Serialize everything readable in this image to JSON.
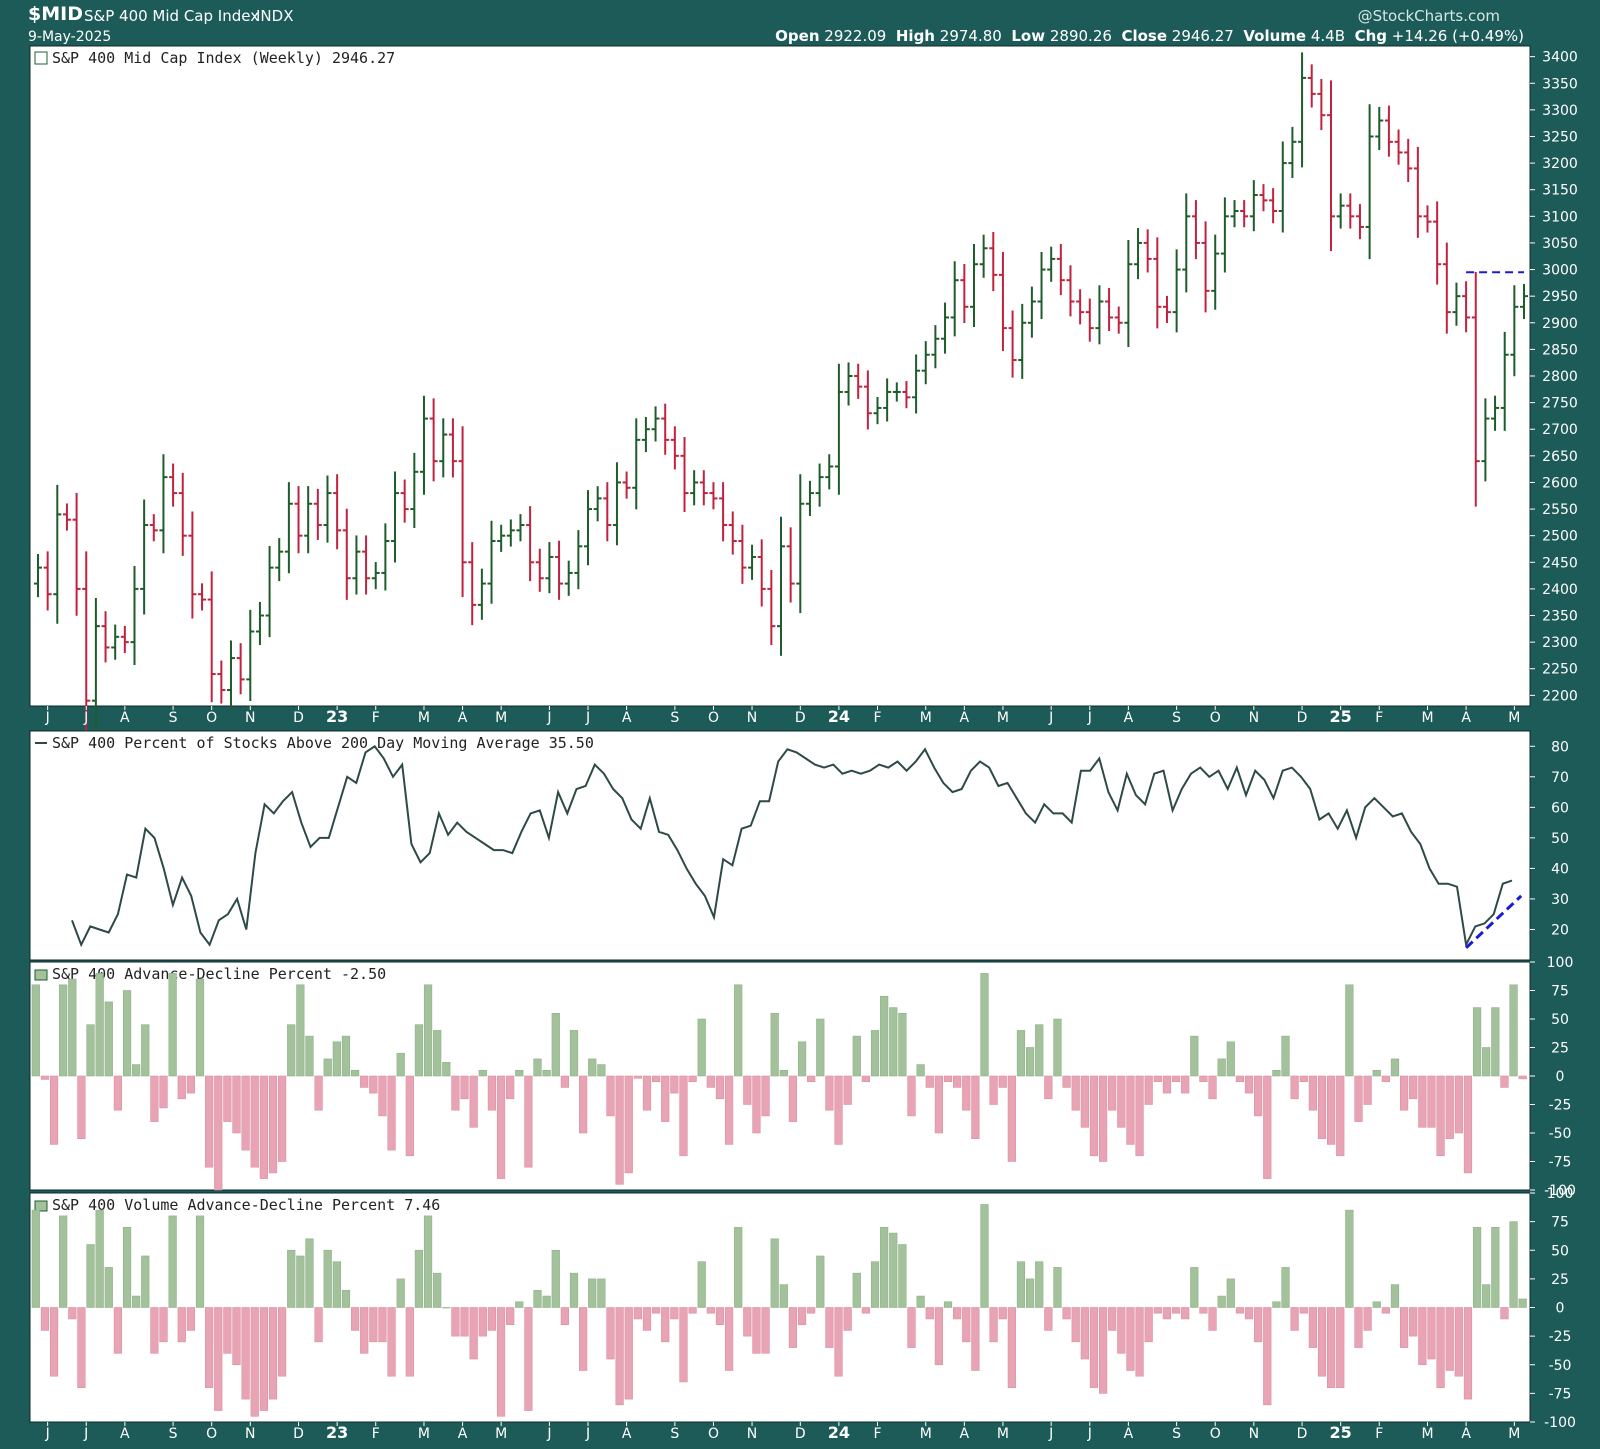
{
  "header": {
    "symbol": "$MID",
    "name": "S&P 400 Mid Cap Index",
    "exchange": "INDX",
    "date": "9-May-2025",
    "watermark": "@StockCharts.com",
    "ohlc": {
      "open_label": "Open",
      "open": "2922.09",
      "high_label": "High",
      "high": "2974.80",
      "low_label": "Low",
      "low": "2890.26",
      "close_label": "Close",
      "close": "2946.27",
      "volume_label": "Volume",
      "volume": "4.4B",
      "chg_label": "Chg",
      "chg": "+14.26 (+0.49%)"
    }
  },
  "colors": {
    "frame": "#1c5b57",
    "up": "#1e5c2b",
    "down": "#c0223f",
    "line": "#2d4a48",
    "pos_bar": "#a3c29c",
    "neg_bar": "#e8a4b4",
    "dashed": "#1b1bd6"
  },
  "x_axis": {
    "labels": [
      "J",
      "J",
      "A",
      "S",
      "O",
      "N",
      "D",
      "23",
      "F",
      "M",
      "A",
      "M",
      "J",
      "J",
      "A",
      "S",
      "O",
      "N",
      "D",
      "24",
      "F",
      "M",
      "A",
      "M",
      "J",
      "J",
      "A",
      "S",
      "O",
      "N",
      "D",
      "25",
      "F",
      "M",
      "A",
      "M"
    ],
    "label_weeks": [
      1,
      5,
      9,
      14,
      18,
      22,
      27,
      31,
      35,
      40,
      44,
      48,
      53,
      57,
      61,
      66,
      70,
      74,
      79,
      83,
      87,
      92,
      96,
      100,
      105,
      109,
      113,
      118,
      122,
      126,
      131,
      135,
      139,
      144,
      148,
      153
    ]
  },
  "chart_data": [
    {
      "type": "ohlc",
      "title": "S&P 400 Mid Cap Index (Weekly) 2946.27",
      "ylim": [
        2180,
        3420
      ],
      "yticks": [
        2200,
        2250,
        2300,
        2350,
        2400,
        2450,
        2500,
        2550,
        2600,
        2650,
        2700,
        2750,
        2800,
        2850,
        2900,
        2950,
        3000,
        3050,
        3100,
        3150,
        3200,
        3250,
        3300,
        3350,
        3400
      ],
      "closes": [
        2440,
        2390,
        2540,
        2530,
        2400,
        2190,
        2330,
        2290,
        2310,
        2300,
        2400,
        2520,
        2510,
        2610,
        2580,
        2500,
        2390,
        2380,
        2240,
        2210,
        2270,
        2230,
        2320,
        2350,
        2440,
        2470,
        2560,
        2500,
        2560,
        2520,
        2580,
        2510,
        2420,
        2470,
        2420,
        2430,
        2490,
        2580,
        2550,
        2620,
        2720,
        2640,
        2690,
        2640,
        2450,
        2370,
        2410,
        2490,
        2500,
        2510,
        2520,
        2450,
        2420,
        2460,
        2410,
        2430,
        2480,
        2550,
        2570,
        2520,
        2600,
        2590,
        2680,
        2700,
        2720,
        2680,
        2650,
        2580,
        2600,
        2580,
        2570,
        2520,
        2490,
        2440,
        2460,
        2400,
        2330,
        2480,
        2410,
        2560,
        2580,
        2610,
        2630,
        2770,
        2800,
        2780,
        2730,
        2740,
        2770,
        2770,
        2760,
        2810,
        2840,
        2870,
        2910,
        2980,
        2930,
        3010,
        3040,
        2990,
        2890,
        2830,
        2900,
        2940,
        3000,
        3020,
        2980,
        2940,
        2920,
        2890,
        2940,
        2910,
        2900,
        3010,
        3050,
        3020,
        2930,
        2920,
        3000,
        3100,
        3050,
        2960,
        3030,
        3100,
        3110,
        3100,
        3140,
        3130,
        3110,
        3200,
        3240,
        3360,
        3330,
        3290,
        3100,
        3120,
        3100,
        3080,
        3250,
        3280,
        3240,
        3220,
        3190,
        3100,
        3090,
        3010,
        2920,
        2950,
        2910,
        2640,
        2720,
        2740,
        2840,
        2930,
        2950
      ],
      "ohlc_reading": "closes estimated from the price scale, one bar per week"
    },
    {
      "type": "line",
      "title": "S&P 400 Percent of Stocks Above 200 Day Moving Average 35.50",
      "ylim": [
        10,
        85
      ],
      "yticks": [
        20,
        30,
        40,
        50,
        60,
        70,
        80
      ],
      "values": [
        23,
        15,
        21,
        20,
        19,
        25,
        38,
        37,
        53,
        50,
        40,
        28,
        37,
        31,
        19,
        15,
        23,
        25,
        30,
        20,
        45,
        61,
        58,
        62,
        65,
        55,
        47,
        50,
        50,
        60,
        70,
        68,
        78,
        80,
        76,
        70,
        74,
        48,
        42,
        45,
        58,
        51,
        55,
        52,
        50,
        48,
        46,
        46,
        45,
        52,
        58,
        59,
        50,
        65,
        58,
        66,
        67,
        74,
        71,
        66,
        63,
        56,
        53,
        63,
        52,
        51,
        46,
        40,
        35,
        31,
        24,
        43,
        41,
        53,
        54,
        62,
        62,
        75,
        79,
        78,
        76,
        74,
        73,
        74,
        71,
        72,
        71,
        72,
        74,
        73,
        75,
        72,
        75,
        79,
        73,
        68,
        65,
        66,
        72,
        75,
        73,
        67,
        68,
        63,
        58,
        55,
        61,
        58,
        58,
        55,
        72,
        72,
        76,
        65,
        59,
        71,
        64,
        61,
        71,
        72,
        59,
        66,
        71,
        73,
        70,
        72,
        66,
        73,
        64,
        72,
        69,
        63,
        72,
        73,
        70,
        66,
        56,
        58,
        53,
        59,
        50,
        60,
        63,
        60,
        57,
        58,
        52,
        48,
        40,
        35,
        35,
        34,
        15,
        21,
        22,
        25,
        35,
        36
      ],
      "trendline": {
        "from": [
          152,
          14
        ],
        "to": [
          158,
          31
        ]
      }
    },
    {
      "type": "bar",
      "title": "S&P 400 Advance-Decline Percent -2.50",
      "ylim": [
        -100,
        100
      ],
      "yticks": [
        100,
        75,
        50,
        25,
        0,
        -25,
        -50,
        -75,
        -100
      ],
      "values": [
        80,
        -3,
        -60,
        80,
        85,
        -55,
        45,
        90,
        65,
        -30,
        75,
        10,
        45,
        -40,
        -28,
        90,
        -20,
        -15,
        85,
        -80,
        -100,
        -40,
        -50,
        -65,
        -80,
        -90,
        -85,
        -75,
        45,
        80,
        35,
        -30,
        15,
        30,
        35,
        5,
        -10,
        -15,
        -35,
        -65,
        20,
        -70,
        45,
        80,
        40,
        12,
        -30,
        -20,
        -45,
        5,
        -30,
        -90,
        -20,
        5,
        -80,
        15,
        5,
        55,
        -10,
        40,
        -50,
        15,
        10,
        -35,
        -95,
        -85,
        -2,
        -30,
        -5,
        -40,
        -15,
        -70,
        -5,
        50,
        -10,
        -20,
        -60,
        80,
        -25,
        -50,
        -35,
        55,
        5,
        -40,
        30,
        -5,
        50,
        -30,
        -60,
        -25,
        35,
        -5,
        40,
        70,
        60,
        55,
        -35,
        10,
        -10,
        -50,
        -5,
        -10,
        -30,
        -55,
        90,
        -25,
        -10,
        -75,
        40,
        25,
        45,
        -20,
        50,
        -10,
        -30,
        -45,
        -70,
        -75,
        -30,
        -45,
        -60,
        -70,
        -25,
        -5,
        -15,
        -5,
        -15,
        35,
        -5,
        -20,
        15,
        30,
        -5,
        -15,
        -35,
        -90,
        5,
        35,
        -20,
        -5,
        -30,
        -55,
        -60,
        -70,
        80,
        -40,
        -25,
        5,
        -5,
        15,
        -30,
        -20,
        -45,
        -45,
        -70,
        -55,
        -50,
        -85,
        60,
        25,
        60,
        -10,
        80,
        -2.5
      ],
      "bars_reading": "heights estimated from the percent scale, one bar per week"
    },
    {
      "type": "bar",
      "title": "S&P 400 Volume Advance-Decline Percent 7.46",
      "ylim": [
        -100,
        100
      ],
      "yticks": [
        100,
        75,
        50,
        25,
        0,
        -25,
        -50,
        -75,
        -100
      ],
      "values": [
        85,
        -20,
        -60,
        80,
        -10,
        -70,
        55,
        85,
        35,
        -40,
        70,
        10,
        45,
        -40,
        -30,
        80,
        -30,
        -20,
        80,
        -70,
        -90,
        -40,
        -50,
        -80,
        -95,
        -90,
        -80,
        -60,
        50,
        45,
        60,
        -30,
        50,
        40,
        15,
        -20,
        -40,
        -30,
        -30,
        -60,
        25,
        -60,
        50,
        80,
        30,
        0,
        -25,
        -25,
        -45,
        -25,
        -20,
        -95,
        -15,
        5,
        -90,
        15,
        10,
        50,
        -15,
        30,
        -55,
        25,
        25,
        -45,
        -85,
        -80,
        -10,
        -20,
        -5,
        -30,
        -10,
        -65,
        -5,
        40,
        -5,
        -15,
        -55,
        70,
        -25,
        -40,
        -40,
        60,
        20,
        -35,
        -15,
        -5,
        45,
        -35,
        -60,
        -20,
        30,
        -5,
        40,
        70,
        65,
        55,
        -35,
        10,
        -10,
        -50,
        5,
        -10,
        -30,
        -55,
        90,
        -30,
        -10,
        -70,
        40,
        25,
        40,
        -20,
        35,
        -10,
        -30,
        -45,
        -70,
        -75,
        -20,
        -40,
        -55,
        -60,
        -30,
        -5,
        -10,
        -5,
        -10,
        35,
        -5,
        -20,
        10,
        25,
        -5,
        -10,
        -30,
        -85,
        5,
        35,
        -20,
        -5,
        -35,
        -60,
        -70,
        -70,
        85,
        -35,
        -20,
        5,
        -5,
        20,
        -35,
        -25,
        -50,
        -45,
        -70,
        -55,
        -60,
        -80,
        70,
        20,
        70,
        -10,
        75,
        7.46
      ],
      "bars_reading": "heights estimated from the percent scale, one bar per week"
    }
  ]
}
